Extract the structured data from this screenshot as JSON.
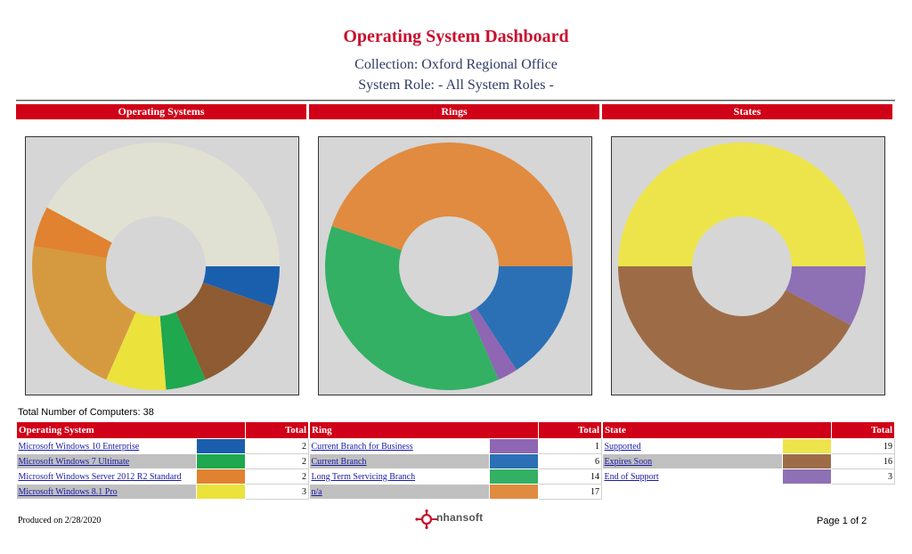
{
  "report": {
    "title": "Operating System Dashboard",
    "collection": "Collection: Oxford Regional Office",
    "system_role": "System Role: - All System Roles -",
    "total_computers": "Total Number of Computers: 38",
    "produced_on": "Produced on 2/28/2020",
    "page": "Page 1 of 2",
    "logo_text": "nhansoft"
  },
  "sections": [
    {
      "header": "Operating Systems",
      "name_col": "Operating System",
      "total_col": "Total",
      "rows": [
        {
          "name": "Microsoft Windows 10 Enterprise",
          "color": "#1a5fae",
          "total": "2"
        },
        {
          "name": "Microsoft Windows 7 Ultimate",
          "color": "#1fa84e",
          "total": "2"
        },
        {
          "name": "Microsoft Windows Server 2012 R2 Standard",
          "color": "#e0822f",
          "total": "2"
        },
        {
          "name": "Microsoft Windows 8.1 Pro",
          "color": "#ece23c",
          "total": "3"
        }
      ]
    },
    {
      "header": "Rings",
      "name_col": "Ring",
      "total_col": "Total",
      "rows": [
        {
          "name": "Current Branch for Business",
          "color": "#8f66b3",
          "total": "1"
        },
        {
          "name": "Current Branch",
          "color": "#2b70b5",
          "total": "6"
        },
        {
          "name": "Long Term Servicing Branch",
          "color": "#33b064",
          "total": "14"
        },
        {
          "name": "n/a",
          "color": "#e08b40",
          "total": "17"
        }
      ]
    },
    {
      "header": "States",
      "name_col": "State",
      "total_col": "Total",
      "rows": [
        {
          "name": "Supported",
          "color": "#ede44c",
          "total": "19"
        },
        {
          "name": "Expires Soon",
          "color": "#9d6c47",
          "total": "16"
        },
        {
          "name": "End of Support",
          "color": "#8e70b4",
          "total": "3"
        }
      ]
    }
  ],
  "chart_data": [
    {
      "type": "pie",
      "title": "Operating Systems",
      "slices": [
        {
          "value": 2,
          "color": "#1a5fae"
        },
        {
          "value": 5,
          "color": "#8e5b32"
        },
        {
          "value": 2,
          "color": "#1fa84e"
        },
        {
          "value": 3,
          "color": "#ece23c"
        },
        {
          "value": 8,
          "color": "#d59a40"
        },
        {
          "value": 2,
          "color": "#e0822f"
        },
        {
          "value": 16,
          "color": "#e1e1d3"
        }
      ]
    },
    {
      "type": "pie",
      "title": "Rings",
      "slices": [
        {
          "value": 6,
          "color": "#2b70b5"
        },
        {
          "value": 1,
          "color": "#8f66b3"
        },
        {
          "value": 14,
          "color": "#33b064"
        },
        {
          "value": 17,
          "color": "#e08b40"
        }
      ]
    },
    {
      "type": "pie",
      "title": "States",
      "slices": [
        {
          "value": 3,
          "color": "#8e70b4"
        },
        {
          "value": 16,
          "color": "#9d6c47"
        },
        {
          "value": 19,
          "color": "#ede44c"
        }
      ]
    }
  ]
}
